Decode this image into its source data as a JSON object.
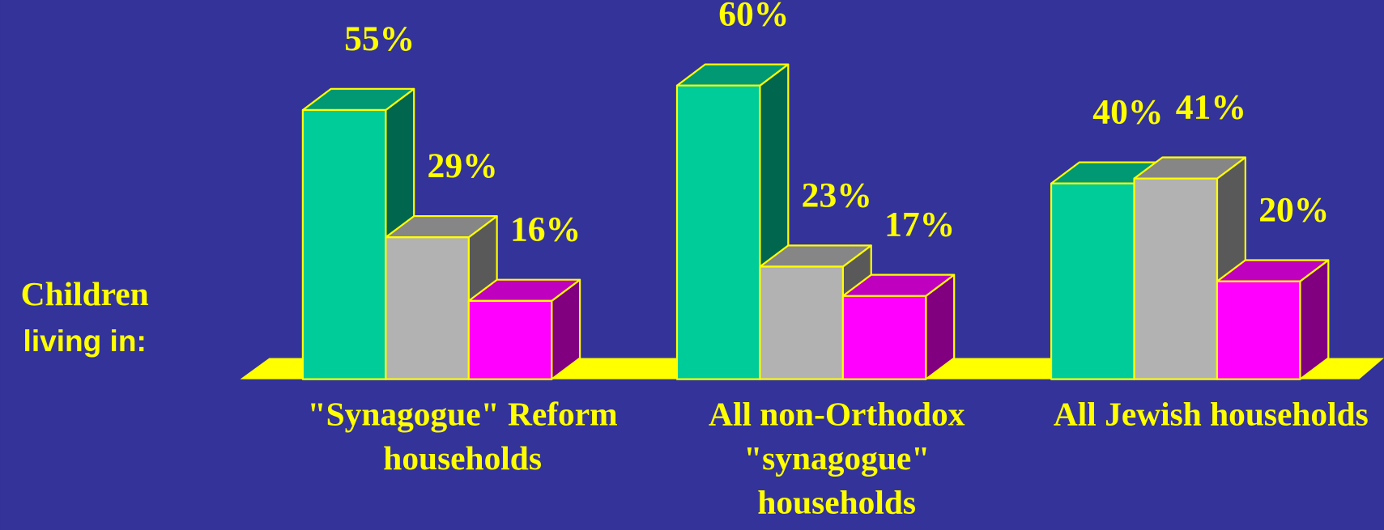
{
  "chart_data": {
    "type": "bar3d",
    "categories": [
      "\"Synagogue\" Reform\nhouseholds",
      "All non-Orthodox\n\"synagogue\"\nhouseholds",
      "All Jewish households"
    ],
    "series": [
      {
        "color": "#00cc99",
        "values": [
          55,
          60,
          40
        ],
        "value_labels": [
          "55%",
          "60%",
          "40%"
        ]
      },
      {
        "color": "#b2b2b2",
        "values": [
          29,
          23,
          41
        ],
        "value_labels": [
          "29%",
          "23%",
          "41%"
        ]
      },
      {
        "color": "#ff00ff",
        "values": [
          16,
          17,
          20
        ],
        "value_labels": [
          "16%",
          "17%",
          "20%"
        ]
      }
    ],
    "side_label": [
      "Children",
      "living in:"
    ]
  }
}
